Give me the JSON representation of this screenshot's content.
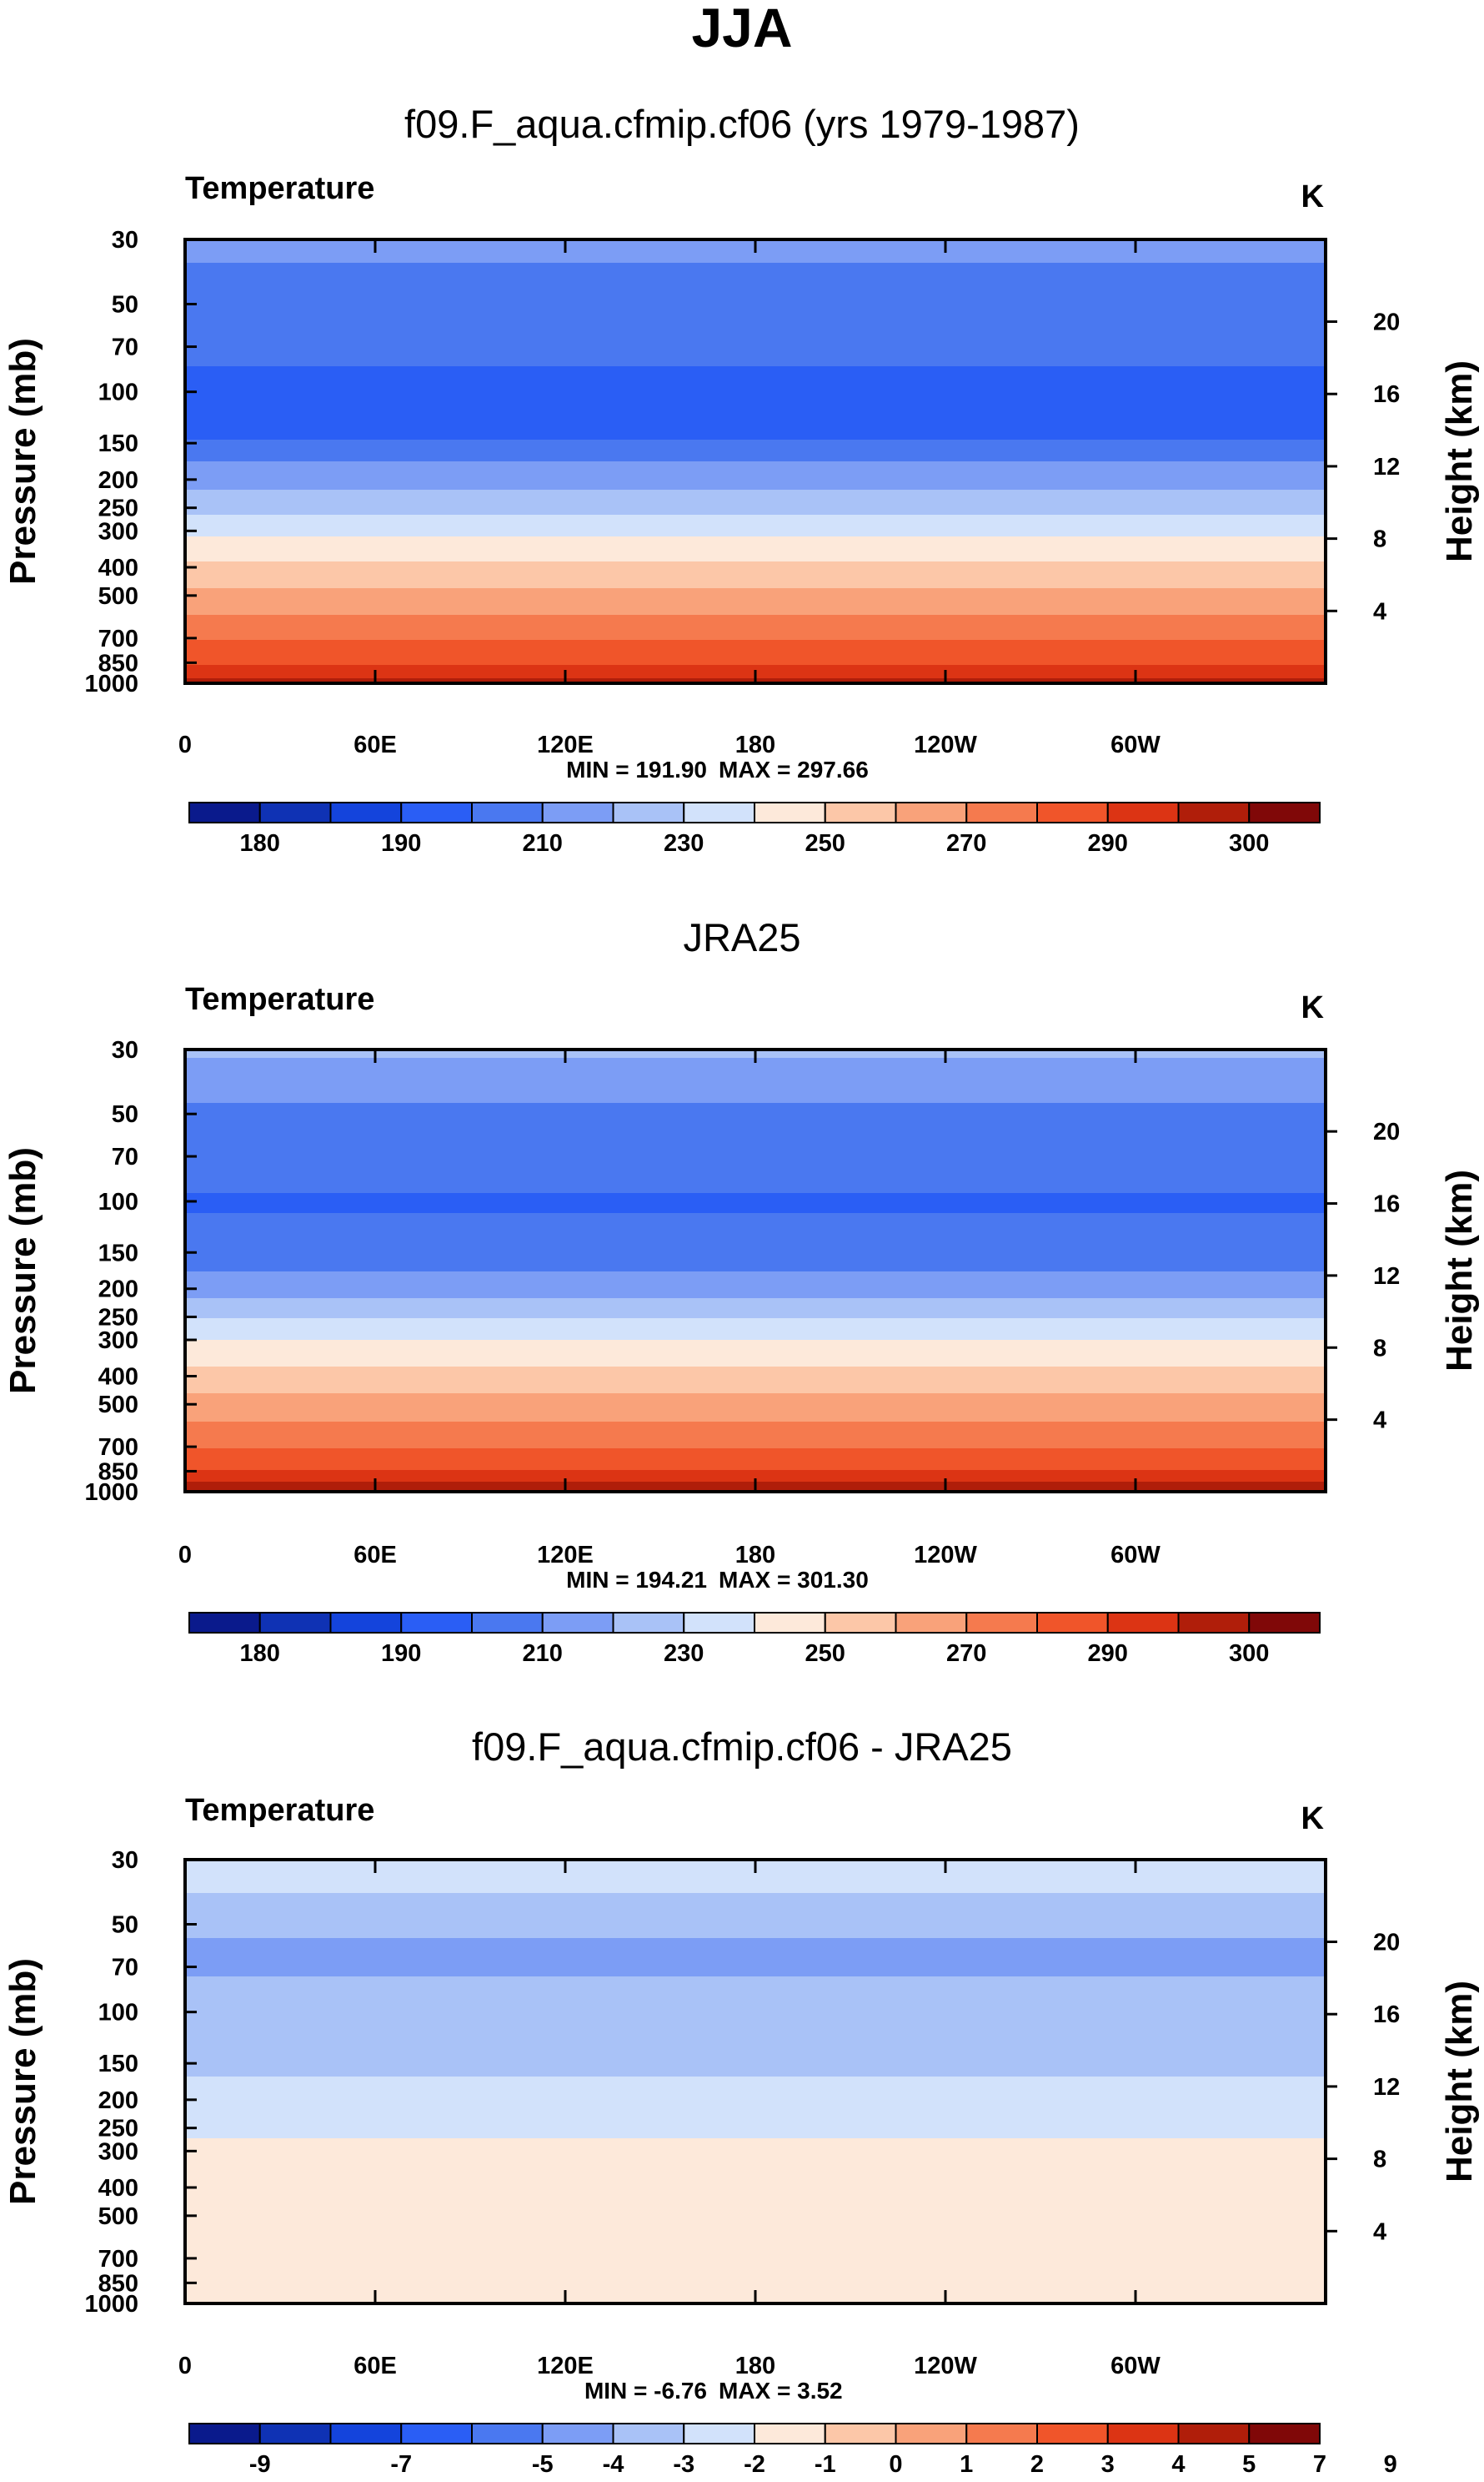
{
  "figure": {
    "title": "JJA"
  },
  "chart_data": [
    {
      "type": "contour",
      "title": "f09.F_aqua.cfmip.cf06 (yrs 1979-1987)",
      "variable": "Temperature",
      "units": "K",
      "ylabel": "Pressure (mb)",
      "ylabel_right": "Height (km)",
      "x_ticks": [
        "0",
        "60E",
        "120E",
        "180",
        "120W",
        "60W"
      ],
      "y_ticks_pressure": [
        30,
        50,
        70,
        100,
        150,
        200,
        250,
        300,
        400,
        500,
        700,
        850,
        1000
      ],
      "y_ticks_height_km": [
        20,
        16,
        12,
        8,
        4
      ],
      "min_label": "MIN = 191.90",
      "max_label": "MAX = 297.66",
      "colorbar": {
        "levels": [
          180,
          185,
          190,
          200,
          210,
          220,
          230,
          240,
          250,
          260,
          270,
          280,
          290,
          295,
          300
        ],
        "labels": [
          "180",
          "190",
          "210",
          "230",
          "250",
          "270",
          "290",
          "300"
        ],
        "colors": [
          "#0a1a8c",
          "#0f32b4",
          "#1444dc",
          "#2a5ef5",
          "#4a78f0",
          "#7c9df5",
          "#a9c2f7",
          "#d2e2fb",
          "#fde9da",
          "#fcc7a8",
          "#f9a27a",
          "#f57a4e",
          "#f0552a",
          "#dc3414",
          "#b01e0a",
          "#800808"
        ]
      },
      "profile": [
        {
          "p": 30,
          "T": 216
        },
        {
          "p": 38,
          "T": 208
        },
        {
          "p": 58,
          "T": 205
        },
        {
          "p": 100,
          "T": 197
        },
        {
          "p": 140,
          "T": 198
        },
        {
          "p": 175,
          "T": 211
        },
        {
          "p": 240,
          "T": 225
        },
        {
          "p": 300,
          "T": 238
        },
        {
          "p": 380,
          "T": 250
        },
        {
          "p": 500,
          "T": 263
        },
        {
          "p": 600,
          "T": 272
        },
        {
          "p": 750,
          "T": 283
        },
        {
          "p": 900,
          "T": 292
        },
        {
          "p": 1000,
          "T": 297
        }
      ]
    },
    {
      "type": "contour",
      "title": "JRA25",
      "variable": "Temperature",
      "units": "K",
      "ylabel": "Pressure (mb)",
      "ylabel_right": "Height (km)",
      "x_ticks": [
        "0",
        "60E",
        "120E",
        "180",
        "120W",
        "60W"
      ],
      "y_ticks_pressure": [
        30,
        50,
        70,
        100,
        150,
        200,
        250,
        300,
        400,
        500,
        700,
        850,
        1000
      ],
      "y_ticks_height_km": [
        20,
        16,
        12,
        8,
        4
      ],
      "min_label": "MIN = 194.21",
      "max_label": "MAX = 301.30",
      "colorbar": {
        "levels": [
          180,
          185,
          190,
          200,
          210,
          220,
          230,
          240,
          250,
          260,
          270,
          280,
          290,
          295,
          300
        ],
        "labels": [
          "180",
          "190",
          "210",
          "230",
          "250",
          "270",
          "290",
          "300"
        ],
        "colors": [
          "#0a1a8c",
          "#0f32b4",
          "#1444dc",
          "#2a5ef5",
          "#4a78f0",
          "#7c9df5",
          "#a9c2f7",
          "#d2e2fb",
          "#fde9da",
          "#fcc7a8",
          "#f9a27a",
          "#f57a4e",
          "#f0552a",
          "#dc3414",
          "#b01e0a",
          "#800808"
        ]
      },
      "profile": [
        {
          "p": 30,
          "T": 222
        },
        {
          "p": 40,
          "T": 212
        },
        {
          "p": 60,
          "T": 206
        },
        {
          "p": 100,
          "T": 199
        },
        {
          "p": 140,
          "T": 203
        },
        {
          "p": 190,
          "T": 213
        },
        {
          "p": 250,
          "T": 230
        },
        {
          "p": 310,
          "T": 242
        },
        {
          "p": 400,
          "T": 254
        },
        {
          "p": 520,
          "T": 266
        },
        {
          "p": 650,
          "T": 276
        },
        {
          "p": 800,
          "T": 287
        },
        {
          "p": 930,
          "T": 296
        },
        {
          "p": 1000,
          "T": 300
        }
      ]
    },
    {
      "type": "contour",
      "title": "f09.F_aqua.cfmip.cf06 - JRA25",
      "variable": "Temperature",
      "units": "K",
      "ylabel": "Pressure (mb)",
      "ylabel_right": "Height (km)",
      "x_ticks": [
        "0",
        "60E",
        "120E",
        "180",
        "120W",
        "60W"
      ],
      "y_ticks_pressure": [
        30,
        50,
        70,
        100,
        150,
        200,
        250,
        300,
        400,
        500,
        700,
        850,
        1000
      ],
      "y_ticks_height_km": [
        20,
        16,
        12,
        8,
        4
      ],
      "min_label": "MIN = -6.76",
      "max_label": "MAX =  3.52",
      "colorbar": {
        "levels": [
          -9,
          -8,
          -7,
          -6,
          -5,
          -4,
          -3,
          -2,
          -1,
          0,
          1,
          2,
          3,
          4,
          5,
          7,
          9
        ],
        "labels": [
          "-9",
          "-7",
          "-5",
          "-4",
          "-3",
          "-2",
          "-1",
          "0",
          "1",
          "2",
          "3",
          "4",
          "5",
          "7",
          "9"
        ],
        "colors": [
          "#0a1a8c",
          "#0f32b4",
          "#1444dc",
          "#2a5ef5",
          "#4a78f0",
          "#7c9df5",
          "#a9c2f7",
          "#d2e2fb",
          "#fde9da",
          "#fcc7a8",
          "#f9a27a",
          "#f57a4e",
          "#f0552a",
          "#dc3414",
          "#b01e0a",
          "#800808"
        ]
      },
      "profile": [
        {
          "p": 30,
          "T": -2.5
        },
        {
          "p": 45,
          "T": -3.3
        },
        {
          "p": 60,
          "T": -4.3
        },
        {
          "p": 100,
          "T": -3.6
        },
        {
          "p": 150,
          "T": -3.2
        },
        {
          "p": 200,
          "T": -2.6
        },
        {
          "p": 300,
          "T": -1.8
        },
        {
          "p": 400,
          "T": -1.5
        },
        {
          "p": 500,
          "T": -1.2
        },
        {
          "p": 600,
          "T": -1.6
        },
        {
          "p": 800,
          "T": -1.4
        },
        {
          "p": 950,
          "T": -1.8
        },
        {
          "p": 1000,
          "T": -1.5
        }
      ]
    }
  ]
}
